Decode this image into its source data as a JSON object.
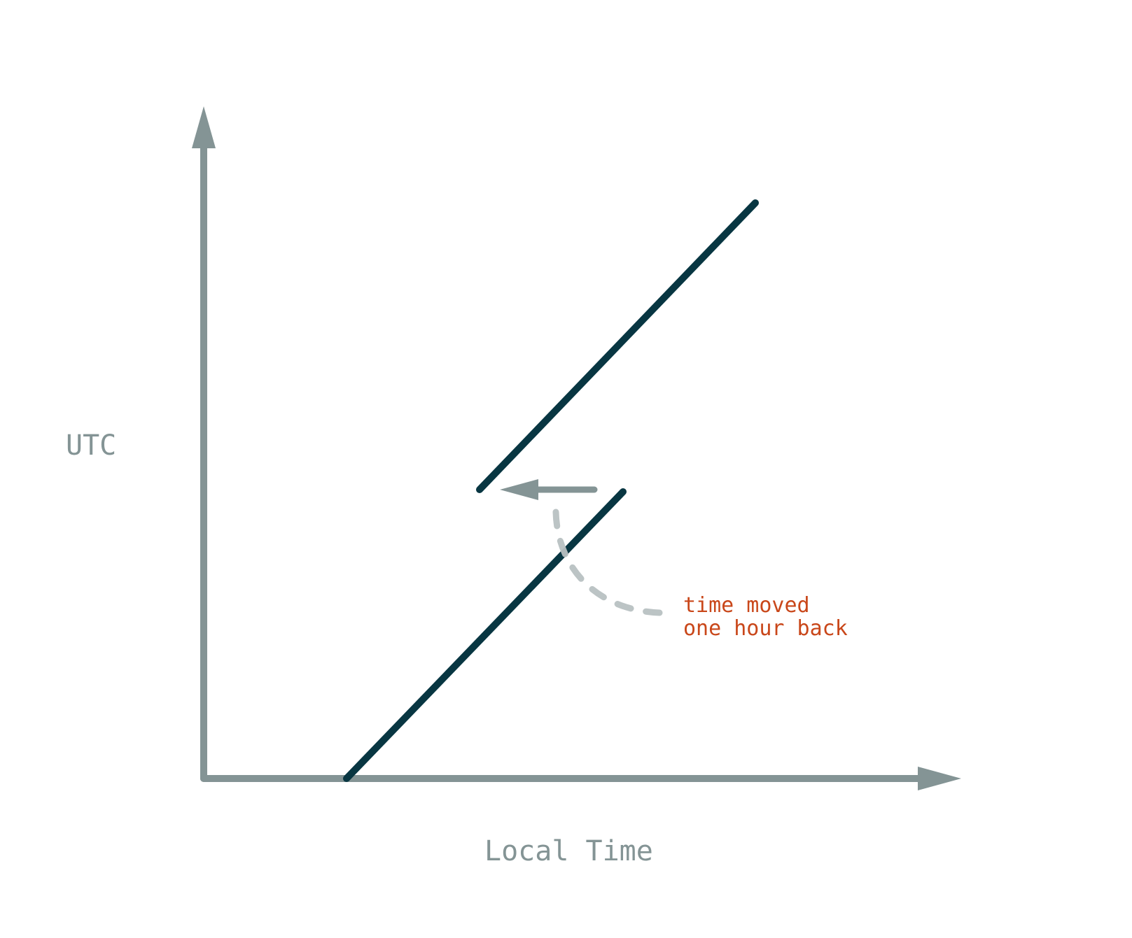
{
  "labels": {
    "y_axis": "UTC",
    "x_axis": "Local Time",
    "annotation_line1": "time moved",
    "annotation_line2": "one hour back"
  },
  "colors": {
    "axis": "#849495",
    "line": "#083642",
    "dashed_curve": "#b8c1c2",
    "annotation": "#c9471a"
  }
}
